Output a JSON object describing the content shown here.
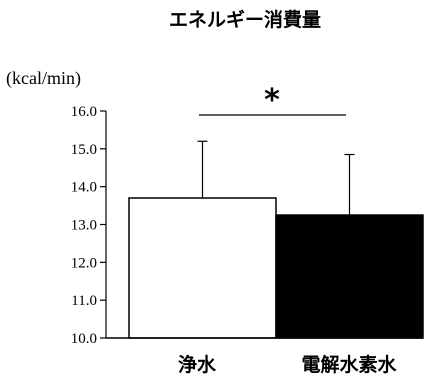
{
  "chart_data": {
    "type": "bar",
    "title": "エネルギー消費量",
    "ylabel": "(kcal/min)",
    "xlabel": "",
    "categories": [
      "浄水",
      "電解水素水"
    ],
    "values": [
      13.7,
      13.25
    ],
    "error": [
      1.5,
      1.6
    ],
    "bar_colors": [
      "#ffffff",
      "#000000"
    ],
    "ylim": [
      10.0,
      16.0
    ],
    "yticks": [
      "10.0",
      "11.0",
      "12.0",
      "13.0",
      "14.0",
      "15.0",
      "16.0"
    ],
    "grid": false,
    "significance": "*"
  }
}
